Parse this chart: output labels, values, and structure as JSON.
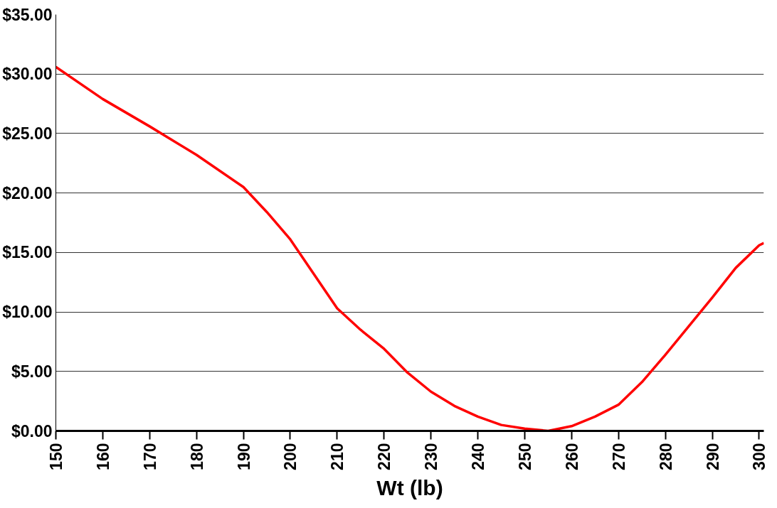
{
  "chart_data": {
    "type": "line",
    "xlabel": "Wt (lb)",
    "x": [
      150,
      160,
      170,
      180,
      190,
      195,
      200,
      205,
      210,
      215,
      220,
      225,
      230,
      235,
      240,
      245,
      250,
      255,
      260,
      265,
      270,
      275,
      280,
      285,
      290,
      295,
      300,
      301
    ],
    "series": [
      {
        "color": "#ff0000",
        "values": [
          30.6,
          27.9,
          25.6,
          23.2,
          20.5,
          18.4,
          16.1,
          13.2,
          10.3,
          8.5,
          6.9,
          4.9,
          3.3,
          2.1,
          1.2,
          0.5,
          0.2,
          0,
          0.4,
          1.2,
          2.2,
          4.1,
          6.4,
          8.8,
          11.2,
          13.7,
          15.6,
          15.8
        ]
      }
    ],
    "xlim": [
      150,
      301
    ],
    "xticks": [
      150,
      160,
      170,
      180,
      190,
      200,
      210,
      220,
      230,
      240,
      250,
      260,
      270,
      280,
      290,
      300
    ],
    "ylim": [
      0,
      35
    ],
    "yticks": [
      {
        "value": 0,
        "label": "$0.00"
      },
      {
        "value": 5,
        "label": "$5.00"
      },
      {
        "value": 10,
        "label": "$10.00"
      },
      {
        "value": 15,
        "label": "$15.00"
      },
      {
        "value": 20,
        "label": "$20.00"
      },
      {
        "value": 25,
        "label": "$25.00"
      },
      {
        "value": 30,
        "label": "$30.00"
      },
      {
        "value": 35,
        "label": "$35.00"
      }
    ],
    "grid": "y",
    "marker": "none",
    "line_style": "solid"
  }
}
